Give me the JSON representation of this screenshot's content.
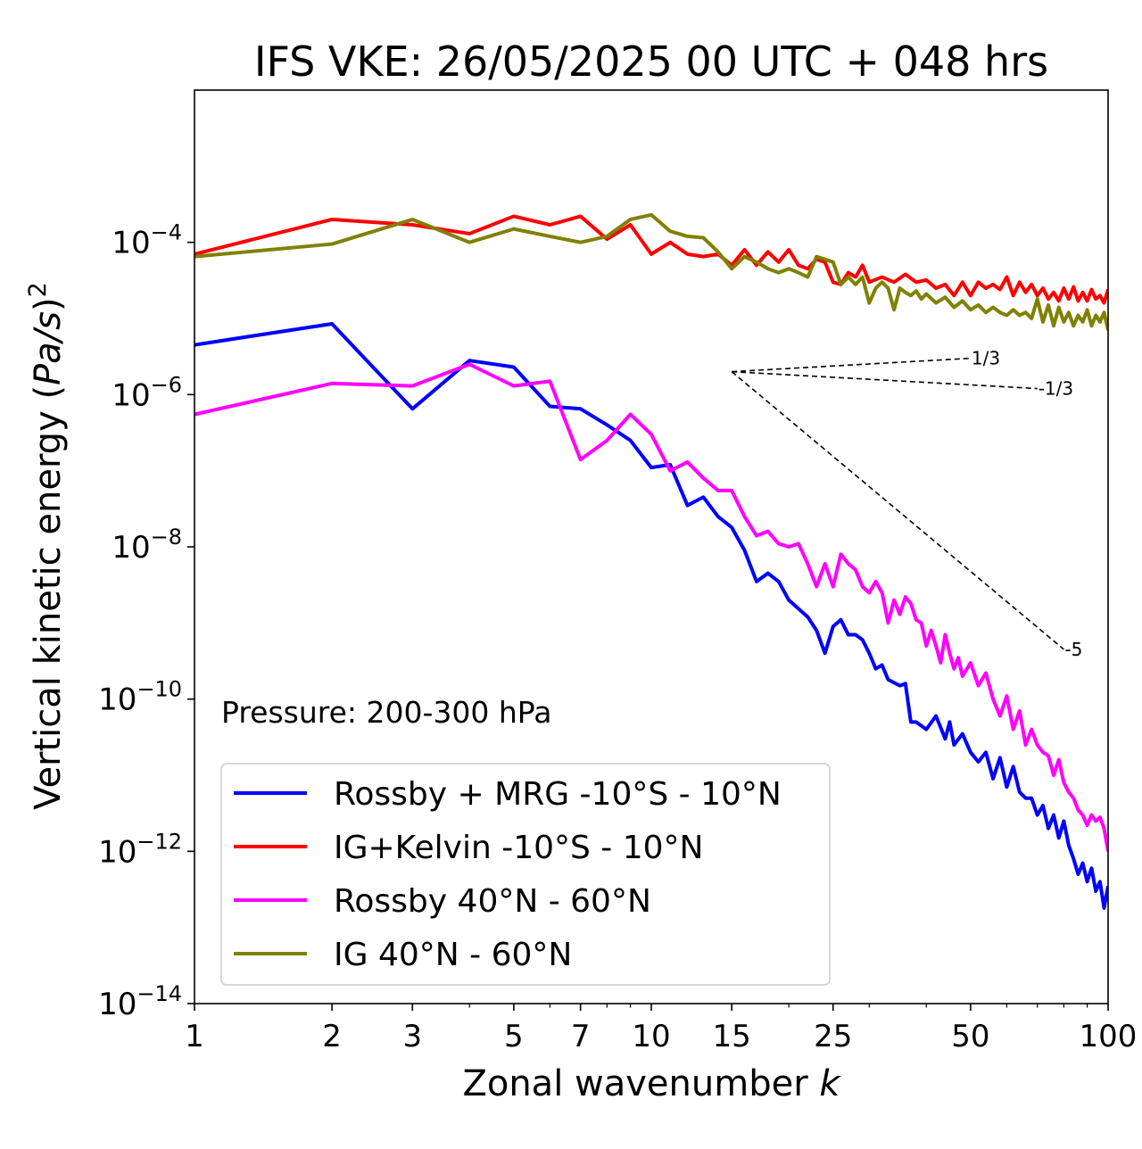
{
  "chart_data": {
    "type": "line",
    "title": "IFS VKE: 26/05/2025 00 UTC + 048 hrs",
    "xlabel": "Zonal wavenumber ",
    "xlabel_var": "k",
    "ylabel": "Vertical kinetic energy (",
    "ylabel_var": "Pa/s",
    "ylabel_close": ")",
    "ylabel_sup": "2",
    "x_scale": "log",
    "y_scale": "log",
    "xlim": [
      1,
      100
    ],
    "ylim": [
      1e-14,
      0.01
    ],
    "x_ticks": [
      1,
      2,
      3,
      5,
      7,
      10,
      15,
      25,
      50,
      100
    ],
    "x_tick_labels": [
      "1",
      "2",
      "3",
      "5",
      "7",
      "10",
      "15",
      "25",
      "50",
      "100"
    ],
    "y_ticks": [
      {
        "value": 0.0001,
        "base": "10",
        "exp": "−4"
      },
      {
        "value": 1e-06,
        "base": "10",
        "exp": "−6"
      },
      {
        "value": 1e-08,
        "base": "10",
        "exp": "−8"
      },
      {
        "value": 1e-10,
        "base": "10",
        "exp": "−10"
      },
      {
        "value": 1e-12,
        "base": "10",
        "exp": "−12"
      },
      {
        "value": 1e-14,
        "base": "10",
        "exp": "−14"
      }
    ],
    "annotation": "Pressure: 200-300 hPa",
    "legend_position": "lower-left",
    "reference_slopes": {
      "origin": {
        "x": 15,
        "y": 2e-06
      },
      "lines": [
        {
          "label": "1/3",
          "x_end": 50,
          "y_end": 3e-06
        },
        {
          "label": "-1/3",
          "x_end": 70,
          "y_end": 1.2e-06
        },
        {
          "label": "-5",
          "x_end": 80,
          "y_end": 4.5e-10
        }
      ]
    },
    "series": [
      {
        "name": "Rossby + MRG -10°S - 10°N",
        "color": "#0000ff",
        "points": [
          [
            1,
            4.5e-06
          ],
          [
            2,
            8.5e-06
          ],
          [
            3,
            6.5e-07
          ],
          [
            4,
            2.8e-06
          ],
          [
            5,
            2.3e-06
          ],
          [
            6,
            7e-07
          ],
          [
            7,
            6.5e-07
          ],
          [
            8,
            4e-07
          ],
          [
            9,
            2.5e-07
          ],
          [
            10,
            1.1e-07
          ],
          [
            11,
            1.2e-07
          ],
          [
            12,
            3.5e-08
          ],
          [
            13,
            4.5e-08
          ],
          [
            14,
            2.5e-08
          ],
          [
            15,
            1.8e-08
          ],
          [
            16,
            9e-09
          ],
          [
            17,
            3.5e-09
          ],
          [
            18,
            4.5e-09
          ],
          [
            19,
            3.5e-09
          ],
          [
            20,
            2e-09
          ],
          [
            22,
            1.2e-09
          ],
          [
            23,
            8e-10
          ],
          [
            24,
            4e-10
          ],
          [
            25,
            9e-10
          ],
          [
            26,
            1.1e-09
          ],
          [
            27,
            7e-10
          ],
          [
            28,
            7e-10
          ],
          [
            29,
            6e-10
          ],
          [
            30,
            4e-10
          ],
          [
            31,
            2.5e-10
          ],
          [
            32,
            2.8e-10
          ],
          [
            33,
            1.8e-10
          ],
          [
            35,
            1.5e-10
          ],
          [
            36,
            1.6e-10
          ],
          [
            37,
            5e-11
          ],
          [
            38,
            5e-11
          ],
          [
            40,
            4e-11
          ],
          [
            42,
            6e-11
          ],
          [
            44,
            3e-11
          ],
          [
            45,
            5e-11
          ],
          [
            46,
            2.5e-11
          ],
          [
            48,
            3.5e-11
          ],
          [
            50,
            2e-11
          ],
          [
            52,
            1.5e-11
          ],
          [
            54,
            2e-11
          ],
          [
            56,
            9e-12
          ],
          [
            58,
            1.7e-11
          ],
          [
            60,
            7e-12
          ],
          [
            62,
            1.3e-11
          ],
          [
            64,
            6e-12
          ],
          [
            66,
            5e-12
          ],
          [
            68,
            5e-12
          ],
          [
            70,
            3e-12
          ],
          [
            72,
            4e-12
          ],
          [
            74,
            2e-12
          ],
          [
            76,
            3e-12
          ],
          [
            78,
            1.5e-12
          ],
          [
            80,
            2.5e-12
          ],
          [
            82,
            1.2e-12
          ],
          [
            84,
            8e-13
          ],
          [
            86,
            5e-13
          ],
          [
            88,
            7e-13
          ],
          [
            90,
            4e-13
          ],
          [
            92,
            6e-13
          ],
          [
            94,
            3e-13
          ],
          [
            96,
            4e-13
          ],
          [
            98,
            1.8e-13
          ],
          [
            100,
            3.5e-13
          ]
        ]
      },
      {
        "name": "IG+Kelvin -10°S - 10°N",
        "color": "#ff0000",
        "points": [
          [
            1,
            7e-05
          ],
          [
            2,
            0.0002
          ],
          [
            3,
            0.00017
          ],
          [
            4,
            0.00013
          ],
          [
            5,
            0.00022
          ],
          [
            6,
            0.00017
          ],
          [
            7,
            0.00022
          ],
          [
            8,
            0.00011
          ],
          [
            9,
            0.00017
          ],
          [
            10,
            7e-05
          ],
          [
            11,
            0.0001
          ],
          [
            12,
            7e-05
          ],
          [
            13,
            6.5e-05
          ],
          [
            14,
            7e-05
          ],
          [
            15,
            5e-05
          ],
          [
            16,
            8e-05
          ],
          [
            17,
            5e-05
          ],
          [
            18,
            7.5e-05
          ],
          [
            19,
            5.5e-05
          ],
          [
            20,
            8e-05
          ],
          [
            21,
            5e-05
          ],
          [
            22,
            4.5e-05
          ],
          [
            23,
            6e-05
          ],
          [
            24,
            5.5e-05
          ],
          [
            25,
            3e-05
          ],
          [
            26,
            2.8e-05
          ],
          [
            27,
            4e-05
          ],
          [
            28,
            3.5e-05
          ],
          [
            29,
            5e-05
          ],
          [
            30,
            3e-05
          ],
          [
            32,
            3.5e-05
          ],
          [
            34,
            3e-05
          ],
          [
            36,
            3.8e-05
          ],
          [
            38,
            3e-05
          ],
          [
            40,
            3.2e-05
          ],
          [
            42,
            2.5e-05
          ],
          [
            44,
            2.8e-05
          ],
          [
            46,
            2e-05
          ],
          [
            48,
            3e-05
          ],
          [
            50,
            2e-05
          ],
          [
            52,
            3e-05
          ],
          [
            54,
            2.5e-05
          ],
          [
            56,
            2.8e-05
          ],
          [
            58,
            2.4e-05
          ],
          [
            60,
            3.5e-05
          ],
          [
            62,
            2e-05
          ],
          [
            64,
            3e-05
          ],
          [
            66,
            2.2e-05
          ],
          [
            68,
            2.8e-05
          ],
          [
            70,
            2e-05
          ],
          [
            72,
            2.5e-05
          ],
          [
            74,
            1.8e-05
          ],
          [
            76,
            2.2e-05
          ],
          [
            78,
            1.7e-05
          ],
          [
            80,
            2.5e-05
          ],
          [
            82,
            1.8e-05
          ],
          [
            84,
            2.6e-05
          ],
          [
            86,
            1.7e-05
          ],
          [
            88,
            2.2e-05
          ],
          [
            90,
            1.7e-05
          ],
          [
            92,
            2.4e-05
          ],
          [
            94,
            1.8e-05
          ],
          [
            96,
            2e-05
          ],
          [
            98,
            1.6e-05
          ],
          [
            100,
            2.4e-05
          ]
        ]
      },
      {
        "name": "Rossby 40°N - 60°N",
        "color": "#ff00ff",
        "points": [
          [
            1,
            5.5e-07
          ],
          [
            2,
            1.4e-06
          ],
          [
            3,
            1.3e-06
          ],
          [
            4,
            2.5e-06
          ],
          [
            5,
            1.3e-06
          ],
          [
            6,
            1.5e-06
          ],
          [
            7,
            1.4e-07
          ],
          [
            8,
            2.5e-07
          ],
          [
            9,
            5.5e-07
          ],
          [
            10,
            3e-07
          ],
          [
            11,
            1e-07
          ],
          [
            12,
            1.3e-07
          ],
          [
            13,
            8e-08
          ],
          [
            14,
            5.5e-08
          ],
          [
            15,
            5.5e-08
          ],
          [
            16,
            2.5e-08
          ],
          [
            17,
            1.4e-08
          ],
          [
            18,
            1.6e-08
          ],
          [
            19,
            1.1e-08
          ],
          [
            20,
            1e-08
          ],
          [
            21,
            1.1e-08
          ],
          [
            22,
            6e-09
          ],
          [
            23,
            3e-09
          ],
          [
            24,
            6e-09
          ],
          [
            25,
            3e-09
          ],
          [
            26,
            8e-09
          ],
          [
            27,
            6e-09
          ],
          [
            28,
            5e-09
          ],
          [
            29,
            3e-09
          ],
          [
            30,
            2.5e-09
          ],
          [
            31,
            3.5e-09
          ],
          [
            32,
            2.5e-09
          ],
          [
            33,
            1e-09
          ],
          [
            34,
            2e-09
          ],
          [
            35,
            1.3e-09
          ],
          [
            36,
            2.2e-09
          ],
          [
            37,
            1.8e-09
          ],
          [
            38,
            1.1e-09
          ],
          [
            39,
            1e-09
          ],
          [
            40,
            5e-10
          ],
          [
            41,
            8e-10
          ],
          [
            42,
            5e-10
          ],
          [
            43,
            3e-10
          ],
          [
            44,
            7e-10
          ],
          [
            45,
            4e-10
          ],
          [
            46,
            2.5e-10
          ],
          [
            47,
            3.5e-10
          ],
          [
            48,
            2e-10
          ],
          [
            50,
            3e-10
          ],
          [
            52,
            1.5e-10
          ],
          [
            54,
            2.2e-10
          ],
          [
            56,
            1e-10
          ],
          [
            58,
            6e-11
          ],
          [
            60,
            1.1e-10
          ],
          [
            62,
            4e-11
          ],
          [
            64,
            7e-11
          ],
          [
            66,
            2.5e-11
          ],
          [
            68,
            4e-11
          ],
          [
            70,
            2.5e-11
          ],
          [
            72,
            2e-11
          ],
          [
            74,
            1.8e-11
          ],
          [
            76,
            1e-11
          ],
          [
            78,
            1.6e-11
          ],
          [
            80,
            8e-12
          ],
          [
            82,
            6e-12
          ],
          [
            84,
            5e-12
          ],
          [
            86,
            3.5e-12
          ],
          [
            88,
            3e-12
          ],
          [
            90,
            2.2e-12
          ],
          [
            92,
            3e-12
          ],
          [
            94,
            2.5e-12
          ],
          [
            96,
            2.8e-12
          ],
          [
            98,
            2e-12
          ],
          [
            100,
            1e-12
          ]
        ]
      },
      {
        "name": "IG 40°N - 60°N",
        "color": "#808000",
        "points": [
          [
            1,
            6.5e-05
          ],
          [
            2,
            9.5e-05
          ],
          [
            3,
            0.0002
          ],
          [
            4,
            0.0001
          ],
          [
            5,
            0.00015
          ],
          [
            6,
            0.00012
          ],
          [
            7,
            0.0001
          ],
          [
            8,
            0.00012
          ],
          [
            9,
            0.0002
          ],
          [
            10,
            0.00023
          ],
          [
            11,
            0.00014
          ],
          [
            12,
            0.00012
          ],
          [
            13,
            0.000115
          ],
          [
            14,
            7.5e-05
          ],
          [
            15,
            4.5e-05
          ],
          [
            16,
            6.5e-05
          ],
          [
            17,
            5.5e-05
          ],
          [
            18,
            4.5e-05
          ],
          [
            19,
            4e-05
          ],
          [
            20,
            4.5e-05
          ],
          [
            21,
            4e-05
          ],
          [
            22,
            3.5e-05
          ],
          [
            23,
            6.5e-05
          ],
          [
            24,
            6e-05
          ],
          [
            25,
            5.5e-05
          ],
          [
            26,
            2.8e-05
          ],
          [
            27,
            3.5e-05
          ],
          [
            28,
            2.8e-05
          ],
          [
            29,
            3.5e-05
          ],
          [
            30,
            1.6e-05
          ],
          [
            31,
            2.5e-05
          ],
          [
            32,
            3e-05
          ],
          [
            33,
            2.5e-05
          ],
          [
            34,
            1.3e-05
          ],
          [
            35,
            2.5e-05
          ],
          [
            36,
            2.2e-05
          ],
          [
            37,
            2e-05
          ],
          [
            38,
            2.3e-05
          ],
          [
            39,
            1.8e-05
          ],
          [
            40,
            2.1e-05
          ],
          [
            42,
            1.6e-05
          ],
          [
            44,
            1.9e-05
          ],
          [
            46,
            1.4e-05
          ],
          [
            48,
            1.7e-05
          ],
          [
            50,
            1.3e-05
          ],
          [
            52,
            1.5e-05
          ],
          [
            54,
            1.2e-05
          ],
          [
            56,
            1.4e-05
          ],
          [
            58,
            1.2e-05
          ],
          [
            60,
            1.1e-05
          ],
          [
            62,
            1.3e-05
          ],
          [
            64,
            1.1e-05
          ],
          [
            66,
            1.2e-05
          ],
          [
            68,
            1e-05
          ],
          [
            70,
            1.8e-05
          ],
          [
            72,
            9e-06
          ],
          [
            74,
            1.5e-05
          ],
          [
            76,
            8e-06
          ],
          [
            78,
            1.4e-05
          ],
          [
            80,
            9e-06
          ],
          [
            82,
            1.2e-05
          ],
          [
            84,
            8e-06
          ],
          [
            86,
            1.1e-05
          ],
          [
            88,
            9e-06
          ],
          [
            90,
            1.3e-05
          ],
          [
            92,
            8e-06
          ],
          [
            94,
            1.1e-05
          ],
          [
            96,
            9e-06
          ],
          [
            98,
            1.2e-05
          ],
          [
            100,
            7e-06
          ]
        ]
      }
    ]
  }
}
